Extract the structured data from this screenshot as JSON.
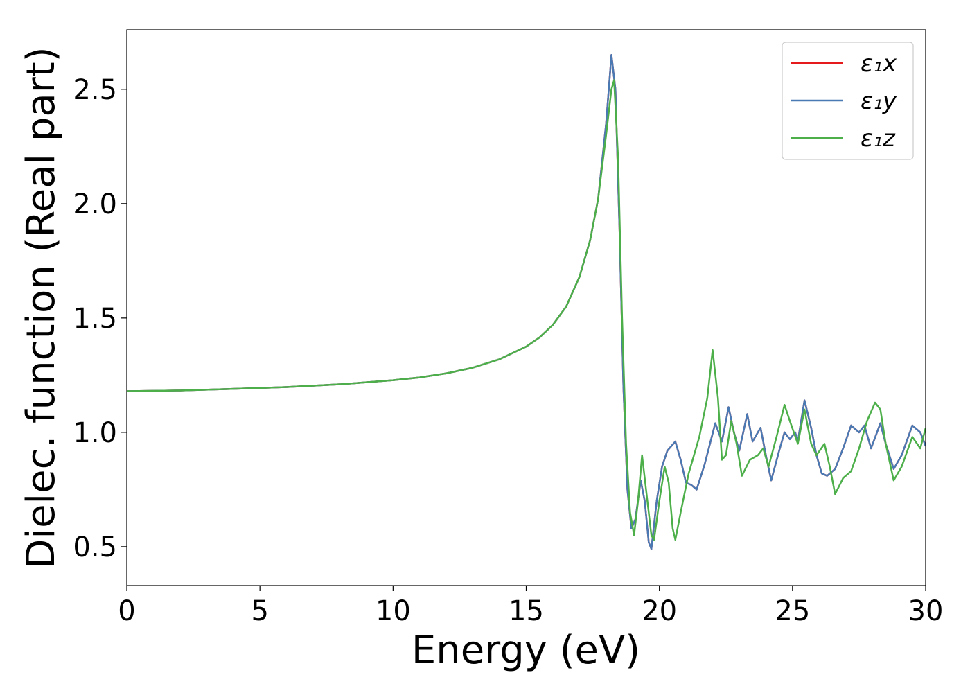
{
  "chart_data": {
    "type": "line",
    "xlabel": "Energy (eV)",
    "ylabel": "Dielec. function (Real part)",
    "xlim": [
      0,
      30
    ],
    "ylim": [
      0.33,
      2.76
    ],
    "xticks": [
      0,
      5,
      10,
      15,
      20,
      25,
      30
    ],
    "yticks": [
      0.5,
      {
        "value": 1,
        "label": "1.0"
      },
      1.5,
      {
        "value": 2,
        "label": "2.0"
      },
      2.5
    ],
    "legend": "upper right",
    "grid": false,
    "series": [
      {
        "name": "ε₁x",
        "color": "#e41a1c",
        "x": [
          0,
          2,
          4,
          6,
          8,
          10,
          11,
          12,
          13,
          14,
          15,
          15.5,
          16,
          16.5,
          17,
          17.4,
          17.7,
          18,
          18.2,
          18.35,
          18.5,
          18.65,
          18.8,
          18.95,
          19.1,
          19.3,
          19.45,
          19.6,
          19.7,
          19.9,
          20.1,
          20.3,
          20.6,
          20.8,
          21,
          21.2,
          21.4,
          21.7,
          22.1,
          22.35,
          22.6,
          22.8,
          23,
          23.3,
          23.5,
          23.8,
          24,
          24.2,
          24.5,
          24.7,
          24.9,
          25.1,
          25.2,
          25.45,
          25.7,
          25.9,
          26.1,
          26.3,
          26.6,
          26.9,
          27.2,
          27.5,
          27.7,
          27.95,
          28.3,
          28.5,
          28.8,
          29.1,
          29.5,
          29.8,
          30
        ],
        "values": [
          1.18,
          1.183,
          1.19,
          1.198,
          1.21,
          1.228,
          1.24,
          1.258,
          1.283,
          1.32,
          1.375,
          1.415,
          1.47,
          1.55,
          1.68,
          1.84,
          2.02,
          2.35,
          2.65,
          2.5,
          1.9,
          1.2,
          0.75,
          0.58,
          0.62,
          0.79,
          0.7,
          0.52,
          0.49,
          0.7,
          0.85,
          0.92,
          0.96,
          0.88,
          0.78,
          0.77,
          0.75,
          0.86,
          1.04,
          0.96,
          1.11,
          1.0,
          0.92,
          1.08,
          0.96,
          1.02,
          0.9,
          0.79,
          0.92,
          1.0,
          0.97,
          1.0,
          0.96,
          1.14,
          1.02,
          0.9,
          0.82,
          0.81,
          0.84,
          0.93,
          1.03,
          1.0,
          1.03,
          0.93,
          1.04,
          0.95,
          0.84,
          0.9,
          1.03,
          1.0,
          0.94
        ]
      },
      {
        "name": "ε₁y",
        "color": "#4a7ab3",
        "x": [
          0,
          2,
          4,
          6,
          8,
          10,
          11,
          12,
          13,
          14,
          15,
          15.5,
          16,
          16.5,
          17,
          17.4,
          17.7,
          18,
          18.2,
          18.35,
          18.5,
          18.65,
          18.8,
          18.95,
          19.1,
          19.3,
          19.45,
          19.6,
          19.7,
          19.9,
          20.1,
          20.3,
          20.6,
          20.8,
          21,
          21.2,
          21.4,
          21.7,
          22.1,
          22.35,
          22.6,
          22.8,
          23,
          23.3,
          23.5,
          23.8,
          24,
          24.2,
          24.5,
          24.7,
          24.9,
          25.1,
          25.2,
          25.45,
          25.7,
          25.9,
          26.1,
          26.3,
          26.6,
          26.9,
          27.2,
          27.5,
          27.7,
          27.95,
          28.3,
          28.5,
          28.8,
          29.1,
          29.5,
          29.8,
          30
        ],
        "values": [
          1.18,
          1.183,
          1.19,
          1.198,
          1.21,
          1.228,
          1.24,
          1.258,
          1.283,
          1.32,
          1.375,
          1.415,
          1.47,
          1.55,
          1.68,
          1.84,
          2.02,
          2.35,
          2.65,
          2.5,
          1.9,
          1.2,
          0.75,
          0.58,
          0.62,
          0.79,
          0.7,
          0.52,
          0.49,
          0.7,
          0.85,
          0.92,
          0.96,
          0.88,
          0.78,
          0.77,
          0.75,
          0.86,
          1.04,
          0.96,
          1.11,
          1.0,
          0.92,
          1.08,
          0.96,
          1.02,
          0.9,
          0.79,
          0.92,
          1.0,
          0.97,
          1.0,
          0.96,
          1.14,
          1.02,
          0.9,
          0.82,
          0.81,
          0.84,
          0.93,
          1.03,
          1.0,
          1.03,
          0.93,
          1.04,
          0.95,
          0.84,
          0.9,
          1.03,
          1.0,
          0.94
        ]
      },
      {
        "name": "ε₁z",
        "color": "#4daf4a",
        "x": [
          0,
          2,
          4,
          6,
          8,
          10,
          11,
          12,
          13,
          14,
          15,
          15.5,
          16,
          16.5,
          17,
          17.4,
          17.7,
          18,
          18.2,
          18.3,
          18.45,
          18.6,
          18.75,
          18.9,
          19.05,
          19.2,
          19.35,
          19.5,
          19.7,
          19.8,
          20,
          20.2,
          20.35,
          20.5,
          20.6,
          20.8,
          21.1,
          21.5,
          21.8,
          22,
          22.2,
          22.35,
          22.5,
          22.7,
          22.9,
          23.1,
          23.4,
          23.7,
          23.9,
          24.1,
          24.4,
          24.7,
          24.9,
          25.2,
          25.45,
          25.7,
          25.9,
          26.2,
          26.4,
          26.6,
          26.9,
          27.2,
          27.5,
          27.8,
          28.1,
          28.3,
          28.5,
          28.8,
          29.1,
          29.5,
          29.8,
          30
        ],
        "values": [
          1.18,
          1.183,
          1.19,
          1.198,
          1.21,
          1.228,
          1.24,
          1.258,
          1.283,
          1.32,
          1.375,
          1.415,
          1.47,
          1.55,
          1.68,
          1.84,
          2.02,
          2.3,
          2.5,
          2.54,
          2.2,
          1.5,
          0.95,
          0.65,
          0.55,
          0.7,
          0.9,
          0.75,
          0.55,
          0.53,
          0.7,
          0.85,
          0.78,
          0.58,
          0.53,
          0.65,
          0.82,
          0.98,
          1.15,
          1.36,
          1.15,
          0.88,
          0.9,
          1.05,
          0.95,
          0.81,
          0.88,
          0.9,
          0.93,
          0.85,
          0.98,
          1.12,
          1.05,
          0.95,
          1.1,
          0.95,
          0.9,
          0.95,
          0.85,
          0.73,
          0.8,
          0.83,
          0.93,
          1.05,
          1.13,
          1.1,
          0.95,
          0.79,
          0.85,
          0.98,
          0.93,
          1.02
        ]
      }
    ]
  }
}
